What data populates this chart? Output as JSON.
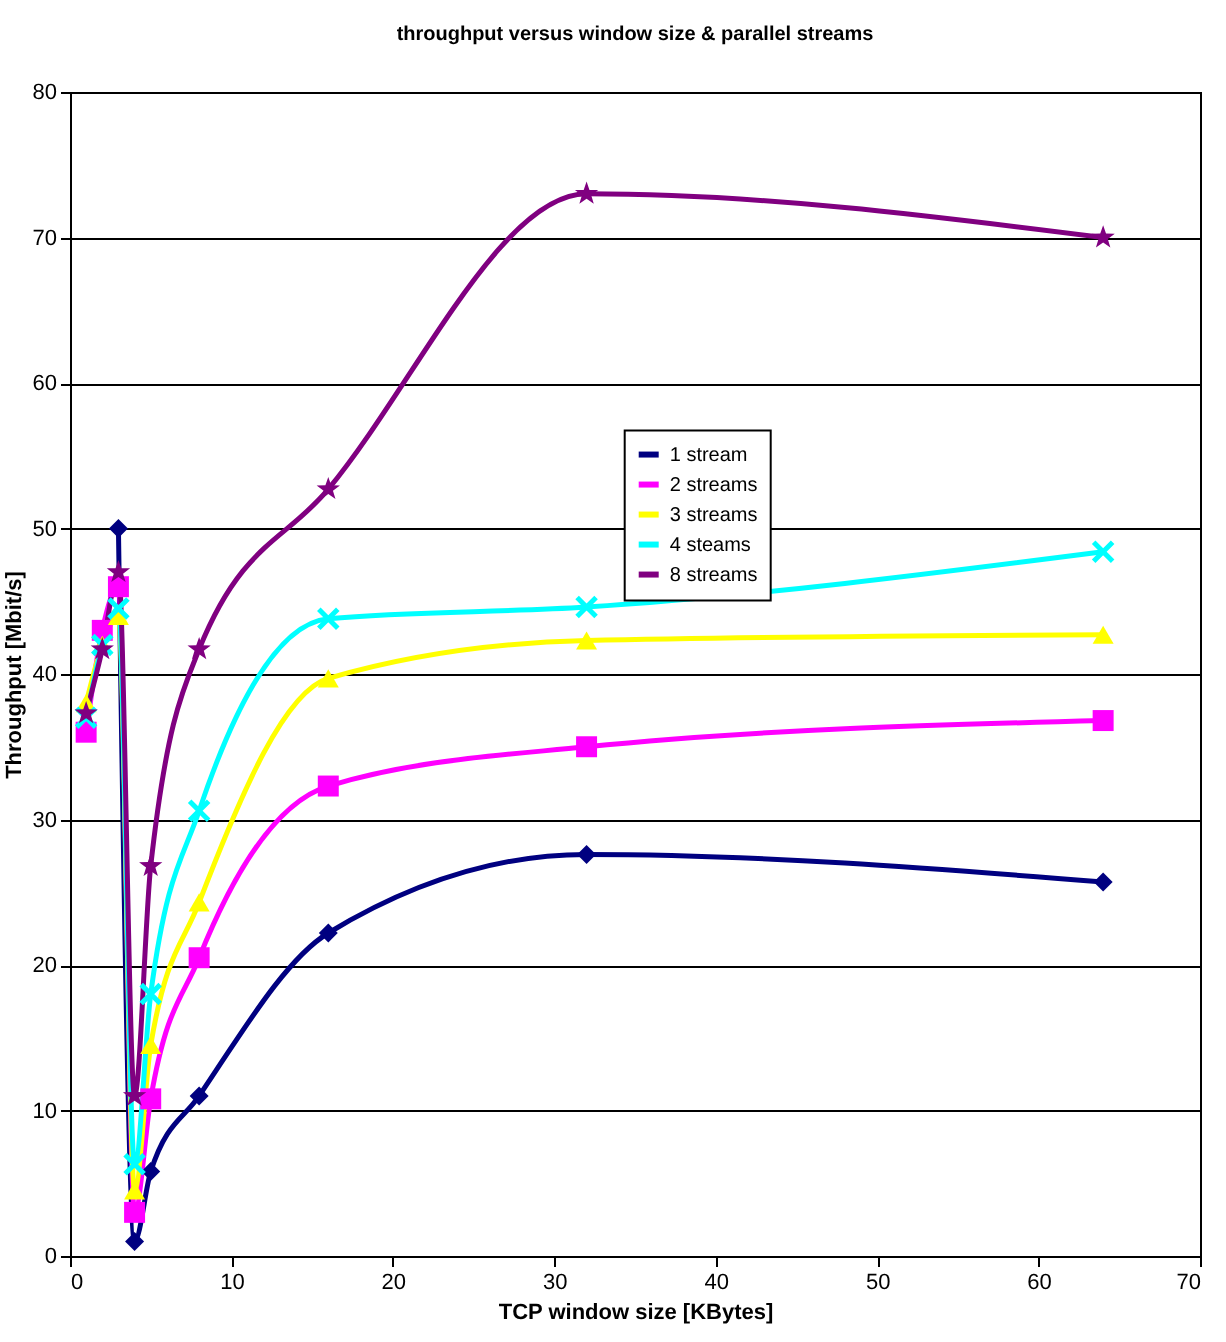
{
  "chart_data": {
    "type": "line",
    "title": "throughput versus window size & parallel streams",
    "xlabel": "TCP window size [KBytes]",
    "ylabel": "Throughput [Mbit/s]",
    "x": [
      1,
      2,
      3,
      4,
      5,
      8,
      16,
      32,
      64
    ],
    "series": [
      {
        "name": "1 stream",
        "color": "#000080",
        "marker": "diamond",
        "values": [
          null,
          null,
          50,
          1,
          5.8,
          11,
          22.2,
          27.6,
          25.7
        ]
      },
      {
        "name": "2 streams",
        "color": "#ff00ff",
        "marker": "square",
        "values": [
          36,
          43,
          46,
          3,
          10.8,
          20.5,
          32.3,
          35,
          36.8
        ]
      },
      {
        "name": "3 streams",
        "color": "#ffff00",
        "marker": "triangle",
        "values": [
          38,
          42,
          44,
          4.5,
          14.5,
          24.3,
          39.7,
          42.3,
          42.7
        ]
      },
      {
        "name": "4 steams",
        "color": "#00ffff",
        "marker": "cross",
        "values": [
          37,
          42,
          44.5,
          6.3,
          18,
          30.6,
          43.8,
          44.6,
          48.4
        ]
      },
      {
        "name": "8 streams",
        "color": "#800080",
        "marker": "star",
        "values": [
          37.3,
          41.7,
          47,
          11,
          26.8,
          41.7,
          52.7,
          73,
          70
        ]
      }
    ],
    "xlim": [
      0,
      70
    ],
    "xticks": [
      0,
      10,
      20,
      30,
      40,
      50,
      60,
      70
    ],
    "ylim": [
      0,
      80
    ],
    "yticks": [
      0,
      10,
      20,
      30,
      40,
      50,
      60,
      70,
      80
    ],
    "grid": "y",
    "legend": "right",
    "line_style": "solid"
  }
}
